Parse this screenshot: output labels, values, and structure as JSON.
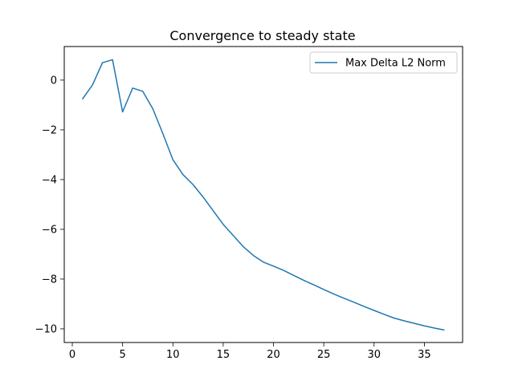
{
  "chart_data": {
    "type": "line",
    "title": "Convergence to steady state",
    "xlabel": "",
    "ylabel": "",
    "xlim": [
      -0.8,
      38.8
    ],
    "ylim": [
      -10.55,
      1.35
    ],
    "xticks": [
      0,
      5,
      10,
      15,
      20,
      25,
      30,
      35
    ],
    "yticks": [
      0,
      -2,
      -4,
      -6,
      -8,
      -10
    ],
    "grid": false,
    "legend_position": "top-right",
    "series": [
      {
        "name": "Max Delta L2 Norm",
        "color": "#1f77b4",
        "x": [
          1,
          2,
          3,
          4,
          5,
          6,
          7,
          8,
          9,
          10,
          11,
          12,
          13,
          14,
          15,
          16,
          17,
          18,
          19,
          20,
          21,
          22,
          23,
          24,
          25,
          26,
          27,
          28,
          29,
          30,
          31,
          32,
          33,
          34,
          35,
          36,
          37
        ],
        "y": [
          -0.77,
          -0.2,
          0.7,
          0.82,
          -1.28,
          -0.32,
          -0.45,
          -1.15,
          -2.15,
          -3.2,
          -3.8,
          -4.2,
          -4.7,
          -5.25,
          -5.8,
          -6.25,
          -6.7,
          -7.05,
          -7.32,
          -7.48,
          -7.65,
          -7.85,
          -8.05,
          -8.23,
          -8.42,
          -8.6,
          -8.77,
          -8.93,
          -9.1,
          -9.26,
          -9.42,
          -9.57,
          -9.68,
          -9.78,
          -9.88,
          -9.97,
          -10.05
        ]
      }
    ]
  }
}
